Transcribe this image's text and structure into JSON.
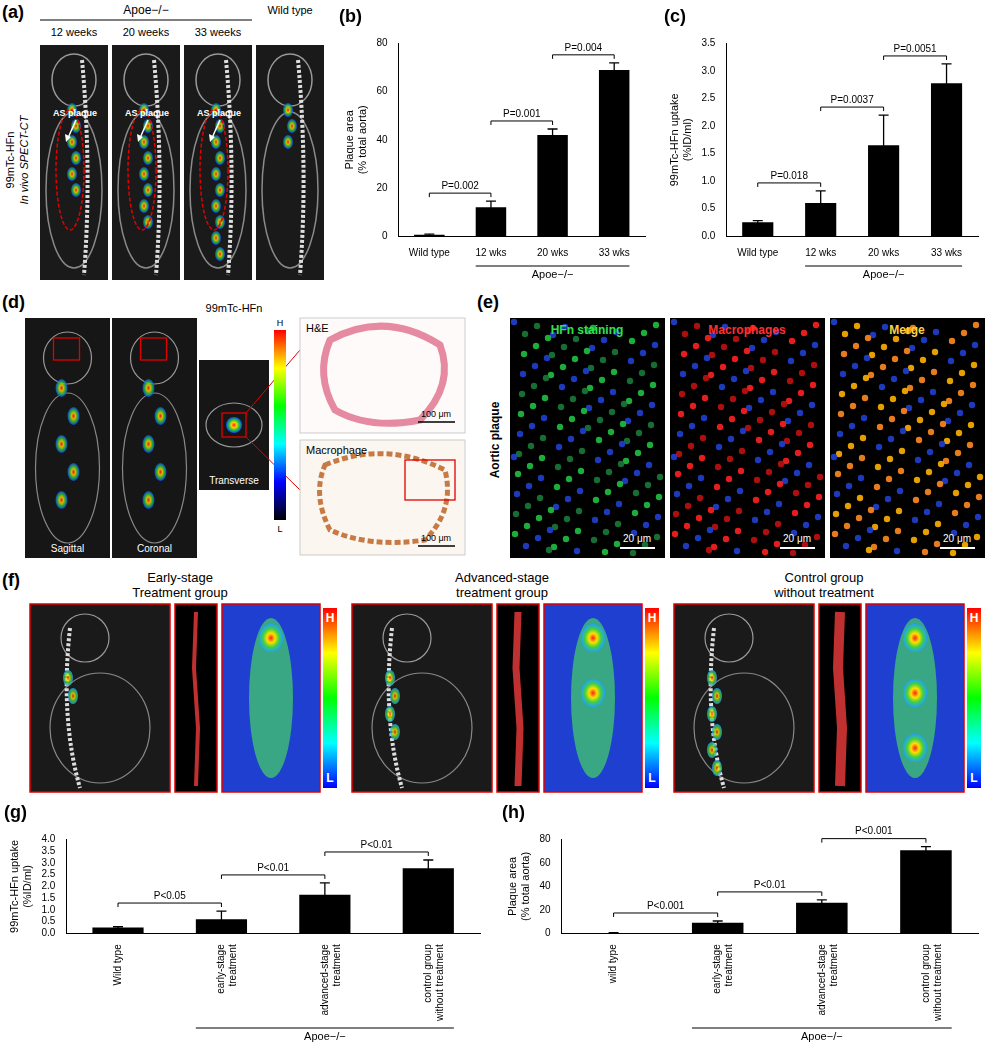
{
  "chart_data": [
    {
      "type": "bar",
      "title": "(b)",
      "categories": [
        "Wild type",
        "12 wks",
        "20 wks",
        "33 wks"
      ],
      "values": [
        0.5,
        12,
        42,
        69
      ],
      "errors": [
        0.3,
        2.5,
        2.5,
        3
      ],
      "color": "#000000",
      "ylim": [
        0,
        80
      ],
      "yticks": [
        0,
        20,
        40,
        60,
        80
      ],
      "y_label": [
        "Plaque area",
        "(% total aorta)"
      ],
      "grid": false,
      "annotations": [
        {
          "text": "P=0.002",
          "from": "Wild type",
          "to": "12 wks"
        },
        {
          "text": "P=0.001",
          "from": "12 wks",
          "to": "20 wks"
        },
        {
          "text": "P=0.004",
          "from": "20 wks",
          "to": "33 wks"
        }
      ],
      "group": {
        "text": "Apoe−/−",
        "from": "12 wks",
        "to": "33 wks"
      }
    },
    {
      "type": "bar",
      "title": "(c)",
      "categories": [
        "Wild type",
        "12 wks",
        "20 wks",
        "33 wks"
      ],
      "values": [
        0.25,
        0.6,
        1.65,
        2.78
      ],
      "errors": [
        0.03,
        0.22,
        0.55,
        0.35
      ],
      "color": "#000000",
      "ylim": [
        0,
        3.5
      ],
      "yticks": [
        {
          "value": 0,
          "label": "0.0"
        },
        {
          "value": 0.5,
          "label": "0.5"
        },
        {
          "value": 1,
          "label": "1.0"
        },
        {
          "value": 1.5,
          "label": "1.5"
        },
        {
          "value": 2,
          "label": "2.0"
        },
        {
          "value": 2.5,
          "label": "2.5"
        },
        {
          "value": 3,
          "label": "3.0"
        },
        {
          "value": 3.5,
          "label": "3.5"
        }
      ],
      "y_label": [
        "99mTc-HFn uptake",
        "(%ID/ml)"
      ],
      "grid": false,
      "annotations": [
        {
          "text": "P=0.018",
          "from": "Wild type",
          "to": "12 wks"
        },
        {
          "text": "P=0.0037",
          "from": "12 wks",
          "to": "20 wks"
        },
        {
          "text": "P=0.0051",
          "from": "20 wks",
          "to": "33 wks"
        }
      ],
      "group": {
        "text": "Apoe−/−",
        "from": "12 wks",
        "to": "33 wks"
      }
    },
    {
      "type": "bar",
      "title": "(g)",
      "categories": [
        "Wild type",
        "early-stage treatment",
        "advanced-stage treatment",
        "control group without treatment"
      ],
      "values": [
        0.25,
        0.6,
        1.65,
        2.78
      ],
      "errors": [
        0.03,
        0.35,
        0.5,
        0.35
      ],
      "color": "#000000",
      "ylim": [
        0,
        4
      ],
      "yticks": [
        {
          "value": 0,
          "label": "0.0"
        },
        {
          "value": 0.5,
          "label": "0.5"
        },
        {
          "value": 1,
          "label": "1.0"
        },
        {
          "value": 1.5,
          "label": "1.5"
        },
        {
          "value": 2,
          "label": "2.0"
        },
        {
          "value": 2.5,
          "label": "2.5"
        },
        {
          "value": 3,
          "label": "3.0"
        },
        {
          "value": 3.5,
          "label": "3.5"
        },
        {
          "value": 4,
          "label": "4.0"
        }
      ],
      "y_label": [
        "99mTc-HFn uptake",
        "(%ID/ml)"
      ],
      "grid": false,
      "annotations": [
        {
          "text": "P<0.05",
          "from": "Wild type",
          "to": "early-stage treatment"
        },
        {
          "text": "P<0.01",
          "from": "early-stage treatment",
          "to": "advanced-stage treatment"
        },
        {
          "text": "P<0.01",
          "from": "advanced-stage treatment",
          "to": "control group without treatment"
        }
      ],
      "group": {
        "text": "Apoe−/−",
        "from": "early-stage treatment",
        "to": "control group without treatment"
      }
    },
    {
      "type": "bar",
      "title": "(h)",
      "categories": [
        "wild type",
        "early-stage treatment",
        "advanced-stage treatment",
        "control group without treatment"
      ],
      "values": [
        0.3,
        9,
        26,
        71
      ],
      "errors": [
        0.2,
        1.5,
        2.5,
        3
      ],
      "color": "#000000",
      "ylim": [
        0,
        80
      ],
      "yticks": [
        0,
        20,
        40,
        60,
        80
      ],
      "y_label": [
        "Plaque area",
        "(% total aorta)"
      ],
      "grid": false,
      "annotations": [
        {
          "text": "P<0.001",
          "from": "wild type",
          "to": "early-stage treatment"
        },
        {
          "text": "P<0.01",
          "from": "early-stage treatment",
          "to": "advanced-stage treatment"
        },
        {
          "text": "P<0.001",
          "from": "advanced-stage treatment",
          "to": "control group without treatment"
        }
      ],
      "group": {
        "text": "Apoe−/−",
        "from": "early-stage treatment",
        "to": "control group without treatment"
      }
    }
  ],
  "image_panels": {
    "a": {
      "label": "(a)",
      "header": "Apoe−/−",
      "columns": [
        "12 weeks",
        "20 weeks",
        "33 weeks",
        "Wild type"
      ],
      "side_label": [
        "99mTc-HFn",
        "In vivo SPECT-CT"
      ],
      "arrows": [
        "AS plaque",
        "AS plaque",
        "AS plaque"
      ]
    },
    "d": {
      "label": "(d)",
      "views": [
        "Sagittal",
        "Coronal",
        "Transverse"
      ],
      "tracer": "99mTc-HFn",
      "color_scale": [
        "H",
        "L"
      ],
      "stains": [
        "H&E",
        "Macrophage"
      ],
      "scale_bars": [
        "100 μm",
        "100 μm"
      ]
    },
    "e": {
      "label": "(e)",
      "row_label": "Aortic plaque",
      "channels": [
        "HFn staining",
        "Macrophages",
        "Merge"
      ],
      "scale_bars": [
        "20 μm",
        "20 μm",
        "20 μm"
      ]
    },
    "f": {
      "label": "(f)",
      "groups": [
        [
          "Early-stage",
          "Treatment group"
        ],
        [
          "Advanced-stage",
          "treatment group"
        ],
        [
          "Control group",
          "without treatment"
        ]
      ],
      "color_scale": [
        "H",
        "L"
      ]
    }
  }
}
